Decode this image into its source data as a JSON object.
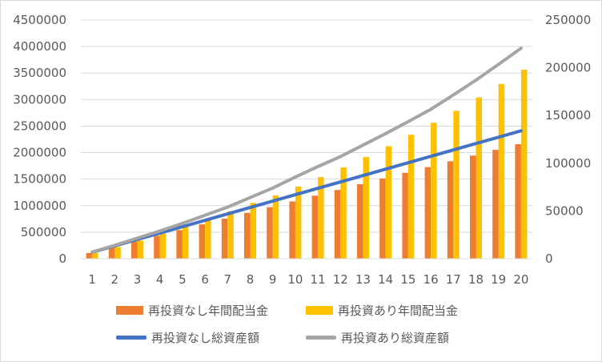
{
  "chart_data": {
    "type": "bar",
    "categories": [
      "1",
      "2",
      "3",
      "4",
      "5",
      "6",
      "7",
      "8",
      "9",
      "10",
      "11",
      "12",
      "13",
      "14",
      "15",
      "16",
      "17",
      "18",
      "19",
      "20"
    ],
    "series": [
      {
        "name": "再投資なし年間配当金",
        "kind": "bar",
        "axis": "left",
        "color": "#ED7D31",
        "values": [
          108000,
          216000,
          324000,
          432000,
          540000,
          648000,
          756000,
          864000,
          972000,
          1080000,
          1188000,
          1296000,
          1404000,
          1512000,
          1620000,
          1728000,
          1836000,
          1944000,
          2052000,
          2160000
        ]
      },
      {
        "name": "再投資あり年間配当金",
        "kind": "bar",
        "axis": "left",
        "color": "#FFC000",
        "values": [
          108000,
          222000,
          342000,
          470000,
          604000,
          747000,
          895000,
          1052000,
          1192000,
          1360000,
          1537000,
          1722000,
          1916000,
          2120000,
          2336000,
          2562000,
          2789000,
          3041000,
          3295000,
          3563000
        ]
      },
      {
        "name": "再投資なし総資産額",
        "kind": "line",
        "axis": "right",
        "color": "#4472C4",
        "values": [
          6700,
          13400,
          20100,
          26800,
          33500,
          40200,
          46900,
          53600,
          60300,
          67000,
          73700,
          80400,
          87100,
          93800,
          100500,
          107200,
          113900,
          120600,
          127300,
          134000
        ]
      },
      {
        "name": "再投資あり総資産額",
        "kind": "line",
        "axis": "right",
        "color": "#A5A5A5",
        "values": [
          7000,
          14000,
          21500,
          29000,
          37000,
          45500,
          54000,
          64000,
          74000,
          85500,
          96500,
          107000,
          119000,
          131000,
          143500,
          156500,
          171500,
          187000,
          203500,
          220500
        ]
      }
    ],
    "y_left": {
      "ticks": [
        "0",
        "500000",
        "1000000",
        "1500000",
        "2000000",
        "2500000",
        "3000000",
        "3500000",
        "4000000",
        "4500000"
      ],
      "min": 0,
      "max": 4500000
    },
    "y_right": {
      "ticks": [
        "0",
        "50000",
        "100000",
        "150000",
        "200000",
        "250000"
      ],
      "min": 0,
      "max": 250000
    },
    "legend_position": "bottom",
    "grid": true
  }
}
